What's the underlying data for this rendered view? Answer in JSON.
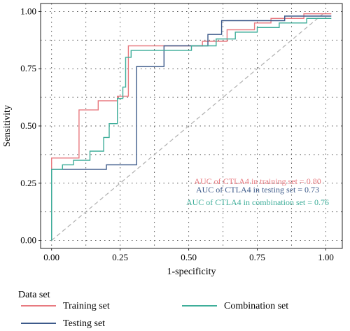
{
  "chart_data": {
    "type": "line",
    "xlabel": "1-specificity",
    "ylabel": "Sensitivity",
    "xlim": [
      -0.04,
      1.06
    ],
    "ylim": [
      -0.035,
      1.035
    ],
    "x_ticks": [
      "0.00",
      "0.25",
      "0.50",
      "0.75",
      "1.00"
    ],
    "y_ticks": [
      "0.00",
      "0.25",
      "0.50",
      "0.75",
      "1.00"
    ],
    "grid": true,
    "reference_line": [
      [
        0,
        0
      ],
      [
        1,
        1
      ]
    ],
    "annotations": [
      {
        "text": "AUC of CTLA4 in training set = 0.80",
        "color": "#e87a80"
      },
      {
        "text": "AUC of CTLA4 in testing set = 0.73",
        "color": "#3d5a8a"
      },
      {
        "text": "AUC of CTLA4 in combination set = 0.76",
        "color": "#3fae9a"
      }
    ],
    "legend": {
      "title": "Data set",
      "position": "bottom"
    },
    "series": [
      {
        "name": "Training set",
        "color": "#e87a80",
        "points": [
          [
            0,
            0
          ],
          [
            0,
            0.36
          ],
          [
            0.1,
            0.36
          ],
          [
            0.1,
            0.57
          ],
          [
            0.17,
            0.57
          ],
          [
            0.17,
            0.61
          ],
          [
            0.24,
            0.61
          ],
          [
            0.24,
            0.63
          ],
          [
            0.28,
            0.63
          ],
          [
            0.28,
            0.85
          ],
          [
            0.55,
            0.85
          ],
          [
            0.55,
            0.87
          ],
          [
            0.64,
            0.87
          ],
          [
            0.64,
            0.92
          ],
          [
            0.74,
            0.92
          ],
          [
            0.74,
            0.95
          ],
          [
            0.8,
            0.95
          ],
          [
            0.8,
            0.97
          ],
          [
            0.92,
            0.97
          ],
          [
            0.92,
            0.99
          ],
          [
            1.02,
            0.99
          ]
        ]
      },
      {
        "name": "Testing set",
        "color": "#3d5a8a",
        "points": [
          [
            0,
            0
          ],
          [
            0,
            0.31
          ],
          [
            0.2,
            0.31
          ],
          [
            0.2,
            0.33
          ],
          [
            0.31,
            0.33
          ],
          [
            0.31,
            0.76
          ],
          [
            0.41,
            0.76
          ],
          [
            0.41,
            0.85
          ],
          [
            0.57,
            0.85
          ],
          [
            0.57,
            0.9
          ],
          [
            0.62,
            0.9
          ],
          [
            0.62,
            0.96
          ],
          [
            0.85,
            0.96
          ],
          [
            0.85,
            0.98
          ],
          [
            1.02,
            0.98
          ]
        ]
      },
      {
        "name": "Combination set",
        "color": "#3fae9a",
        "points": [
          [
            0,
            0
          ],
          [
            0,
            0.31
          ],
          [
            0.04,
            0.31
          ],
          [
            0.04,
            0.33
          ],
          [
            0.08,
            0.33
          ],
          [
            0.08,
            0.35
          ],
          [
            0.14,
            0.35
          ],
          [
            0.14,
            0.39
          ],
          [
            0.19,
            0.39
          ],
          [
            0.19,
            0.45
          ],
          [
            0.21,
            0.45
          ],
          [
            0.21,
            0.51
          ],
          [
            0.24,
            0.51
          ],
          [
            0.24,
            0.62
          ],
          [
            0.26,
            0.62
          ],
          [
            0.26,
            0.67
          ],
          [
            0.27,
            0.67
          ],
          [
            0.27,
            0.8
          ],
          [
            0.29,
            0.8
          ],
          [
            0.29,
            0.83
          ],
          [
            0.51,
            0.83
          ],
          [
            0.51,
            0.85
          ],
          [
            0.6,
            0.85
          ],
          [
            0.6,
            0.88
          ],
          [
            0.67,
            0.88
          ],
          [
            0.67,
            0.91
          ],
          [
            0.75,
            0.91
          ],
          [
            0.75,
            0.93
          ],
          [
            0.83,
            0.93
          ],
          [
            0.83,
            0.95
          ],
          [
            0.93,
            0.95
          ],
          [
            0.93,
            0.97
          ],
          [
            1.02,
            0.97
          ]
        ]
      }
    ]
  }
}
